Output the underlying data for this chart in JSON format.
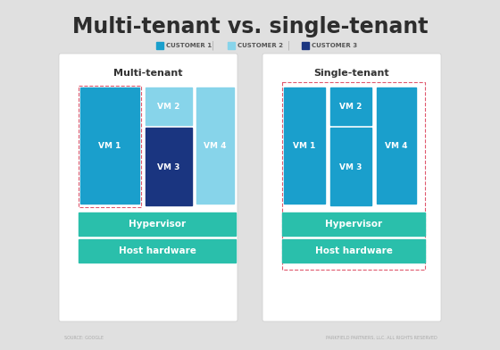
{
  "title": "Multi-tenant vs. single-tenant",
  "title_fontsize": 17,
  "title_fontweight": "bold",
  "title_color": "#2d2d2d",
  "bg_color": "#e0e0e0",
  "legend_items": [
    {
      "label": "CUSTOMER 1",
      "color": "#1a9fcc"
    },
    {
      "label": "CUSTOMER 2",
      "color": "#87d4ea"
    },
    {
      "label": "CUSTOMER 3",
      "color": "#1a3580"
    }
  ],
  "panel_left_title": "Multi-tenant",
  "panel_right_title": "Single-tenant",
  "teal_color": "#2abfab",
  "c1_color": "#1a9fcc",
  "c2_color": "#87d4ea",
  "c3_color": "#1a3580",
  "dashed_color": "#e05a6e",
  "footer_left": "SOURCE: GOOGLE",
  "footer_right": "PARKFIELD PARTNERS, LLC. ALL RIGHTS RESERVED"
}
